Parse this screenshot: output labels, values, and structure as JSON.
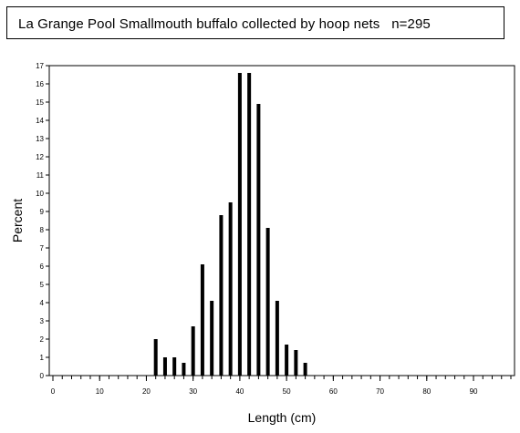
{
  "title": "La Grange Pool Smallmouth buffalo collected by hoop nets   n=295",
  "chart_data": {
    "type": "bar",
    "title": "La Grange Pool Smallmouth buffalo collected by hoop nets   n=295",
    "xlabel": "Length (cm)",
    "ylabel": "Percent",
    "xlim": [
      0,
      98
    ],
    "ylim": [
      0,
      17
    ],
    "xticks": [
      "0",
      "10",
      "20",
      "30",
      "40",
      "50",
      "60",
      "70",
      "80",
      "90"
    ],
    "yticks": [
      "0",
      "1",
      "2",
      "3",
      "4",
      "5",
      "6",
      "7",
      "8",
      "9",
      "10",
      "11",
      "12",
      "13",
      "14",
      "15",
      "16",
      "17"
    ],
    "x": [
      22,
      24,
      26,
      28,
      30,
      32,
      34,
      36,
      38,
      40,
      42,
      44,
      46,
      48,
      50,
      52,
      54
    ],
    "values": [
      2.0,
      1.0,
      1.0,
      0.7,
      2.7,
      6.1,
      4.1,
      8.8,
      9.5,
      16.6,
      16.6,
      14.9,
      8.1,
      4.1,
      1.7,
      1.4,
      0.7
    ],
    "grid": false,
    "colors": {
      "bar": "#000000",
      "axis": "#000000"
    }
  }
}
